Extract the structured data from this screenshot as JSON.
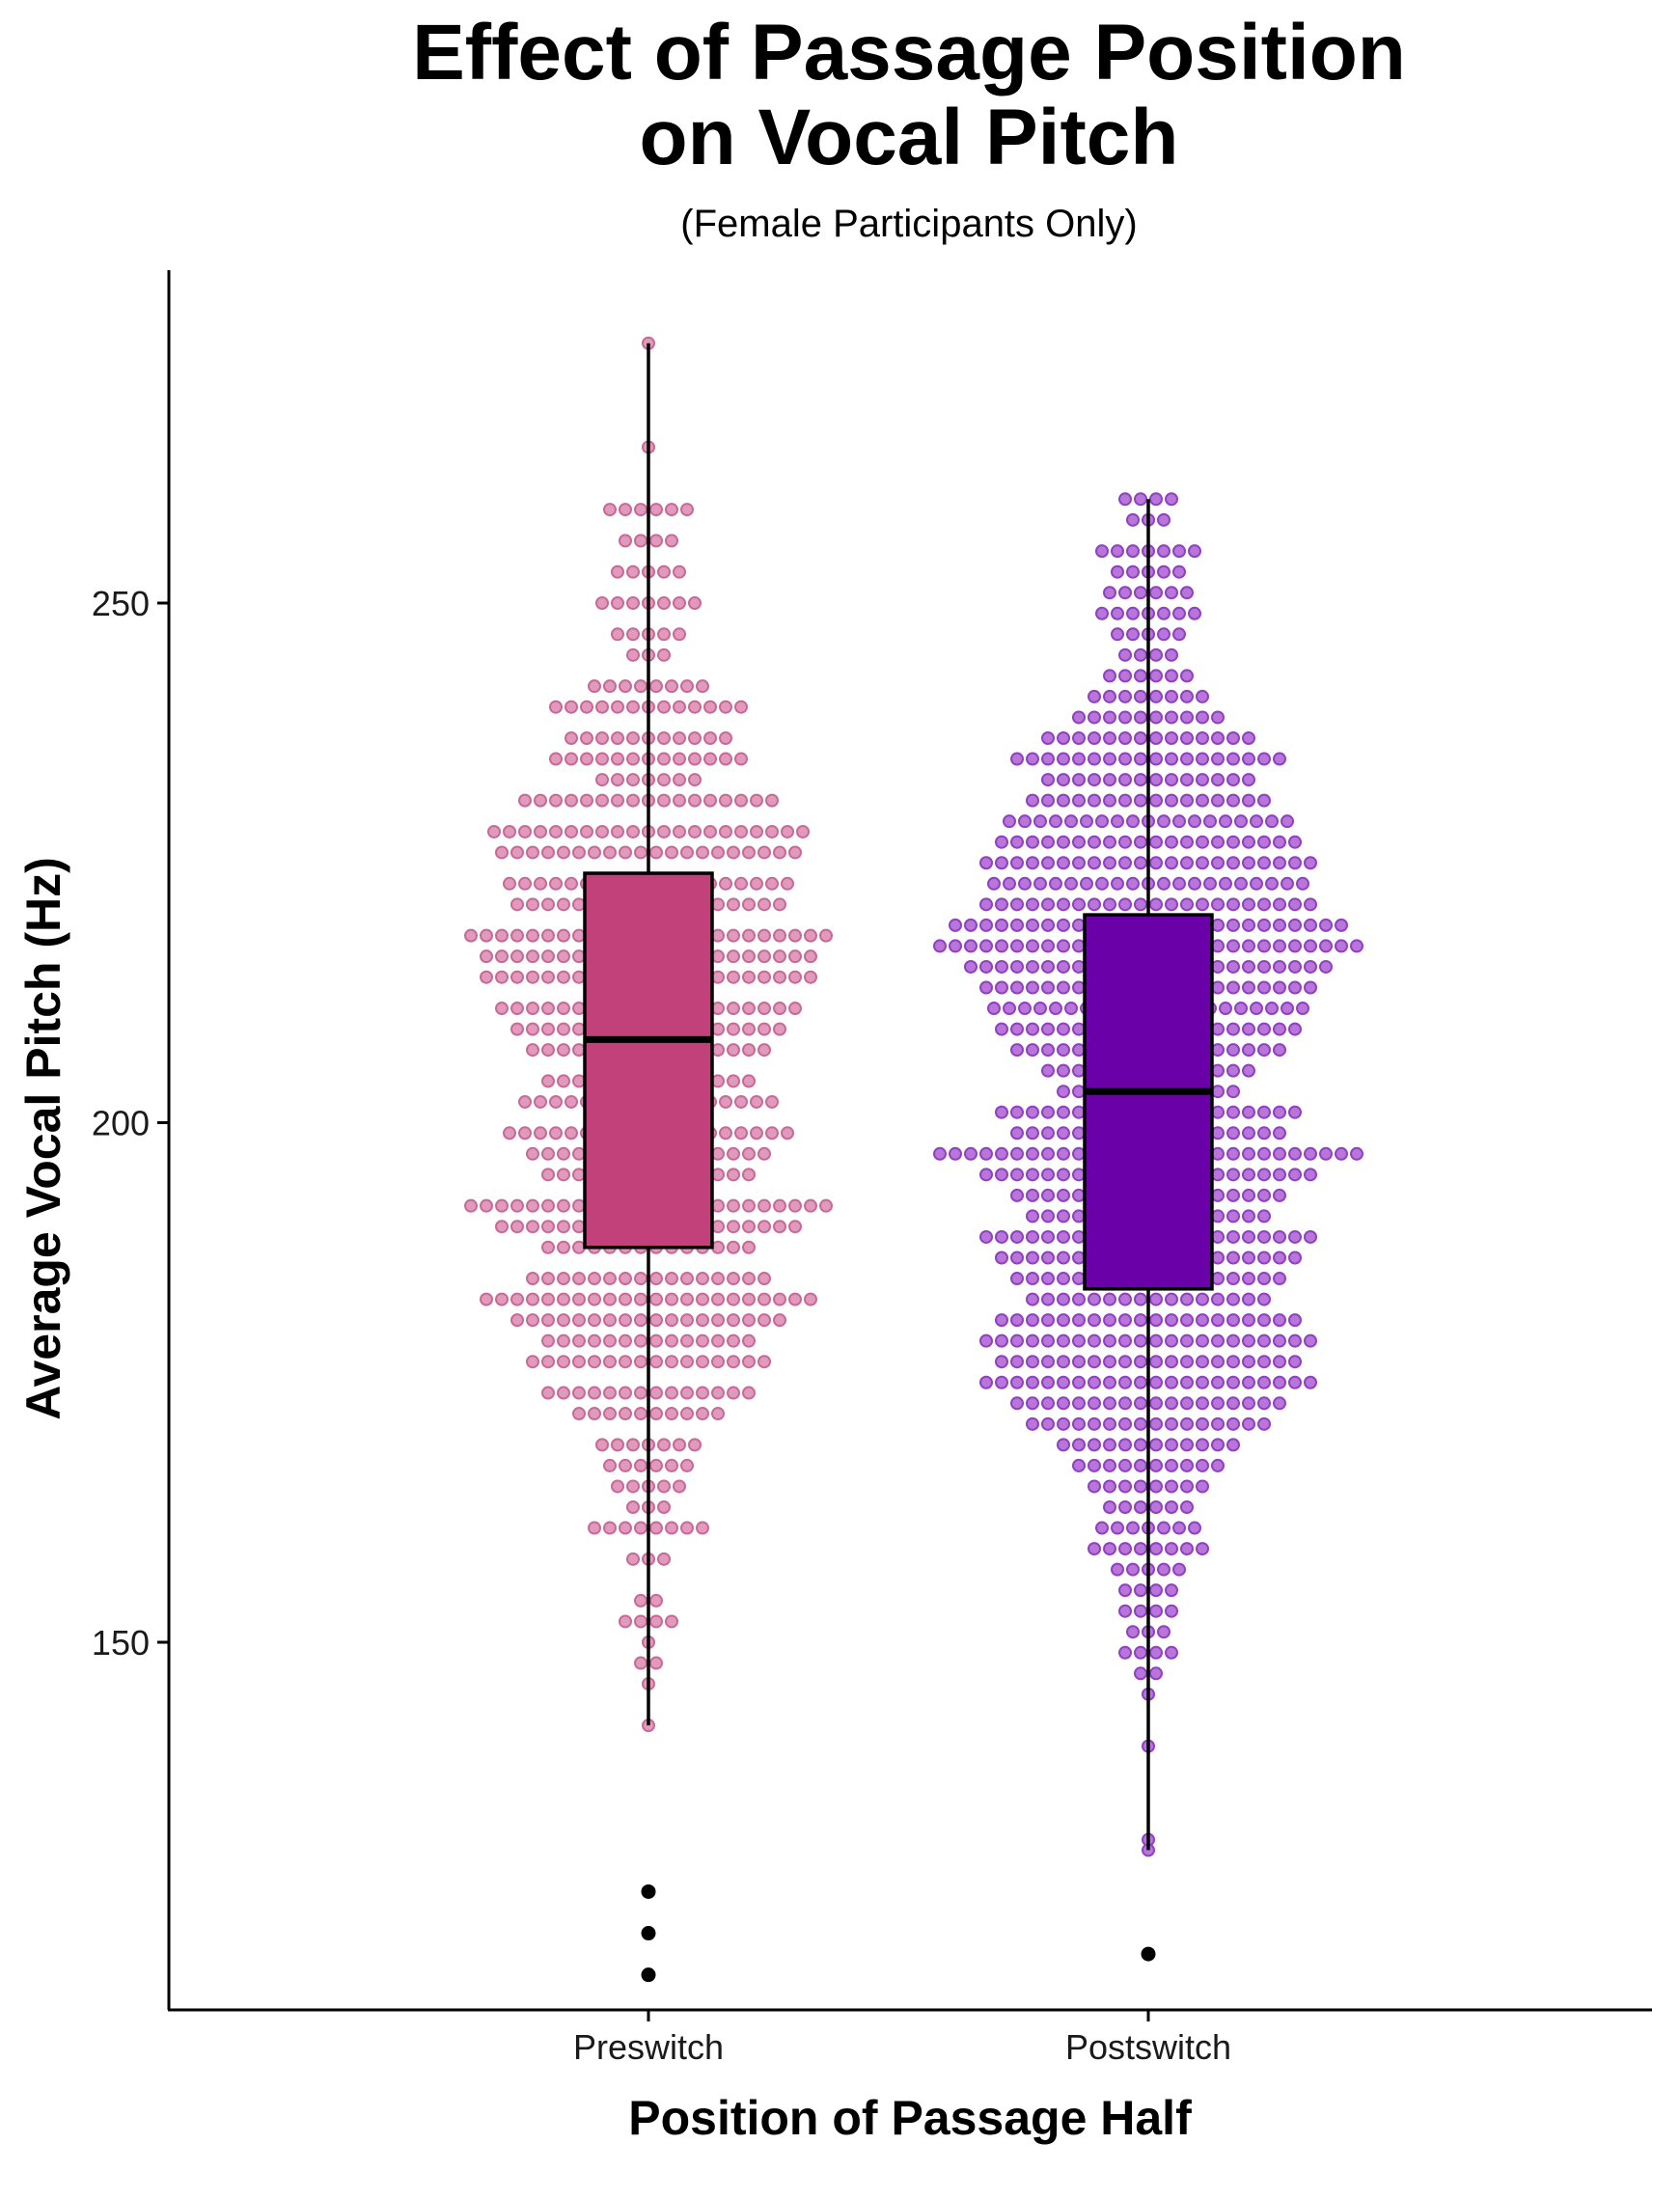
{
  "chart_data": {
    "type": "box-dotplot",
    "title_line1": "Effect of Passage Position",
    "title_line2": "on Vocal Pitch",
    "subtitle": "(Female Participants Only)",
    "xlabel": "Position of Passage Half",
    "ylabel": "Average Vocal Pitch (Hz)",
    "categories": [
      "Preswitch",
      "Postswitch"
    ],
    "ylim": [
      116,
      283
    ],
    "yticks": [
      150,
      200,
      250
    ],
    "ytick_labels": [
      "150",
      "200",
      "250"
    ],
    "grid": false,
    "legend": "none",
    "series": [
      {
        "category": "Preswitch",
        "box_color": "#C2417A",
        "dot_color": "#DE8FB4",
        "dot_edge": "#C76A98",
        "whisker_low": 142,
        "q1": 188,
        "median": 208,
        "q3": 224,
        "whisker_high": 275,
        "outliers": [
          126,
          122,
          118
        ],
        "dot_bins": [
          {
            "y": 275,
            "n": 1
          },
          {
            "y": 265,
            "n": 1
          },
          {
            "y": 259,
            "n": 6
          },
          {
            "y": 256,
            "n": 4
          },
          {
            "y": 253,
            "n": 5
          },
          {
            "y": 250,
            "n": 7
          },
          {
            "y": 247,
            "n": 5
          },
          {
            "y": 245,
            "n": 3
          },
          {
            "y": 242,
            "n": 8
          },
          {
            "y": 240,
            "n": 13
          },
          {
            "y": 237,
            "n": 11
          },
          {
            "y": 235,
            "n": 13
          },
          {
            "y": 233,
            "n": 7
          },
          {
            "y": 231,
            "n": 17
          },
          {
            "y": 228,
            "n": 21
          },
          {
            "y": 226,
            "n": 20
          },
          {
            "y": 223,
            "n": 19
          },
          {
            "y": 221,
            "n": 18
          },
          {
            "y": 218,
            "n": 24
          },
          {
            "y": 216,
            "n": 22
          },
          {
            "y": 214,
            "n": 22
          },
          {
            "y": 211,
            "n": 20
          },
          {
            "y": 209,
            "n": 18
          },
          {
            "y": 207,
            "n": 16
          },
          {
            "y": 204,
            "n": 14
          },
          {
            "y": 202,
            "n": 17
          },
          {
            "y": 199,
            "n": 19
          },
          {
            "y": 197,
            "n": 16
          },
          {
            "y": 195,
            "n": 14
          },
          {
            "y": 192,
            "n": 24
          },
          {
            "y": 190,
            "n": 20
          },
          {
            "y": 188,
            "n": 14
          },
          {
            "y": 185,
            "n": 16
          },
          {
            "y": 183,
            "n": 22
          },
          {
            "y": 181,
            "n": 18
          },
          {
            "y": 179,
            "n": 14
          },
          {
            "y": 177,
            "n": 16
          },
          {
            "y": 174,
            "n": 14
          },
          {
            "y": 172,
            "n": 10
          },
          {
            "y": 169,
            "n": 7
          },
          {
            "y": 167,
            "n": 6
          },
          {
            "y": 165,
            "n": 5
          },
          {
            "y": 163,
            "n": 3
          },
          {
            "y": 161,
            "n": 8
          },
          {
            "y": 158,
            "n": 3
          },
          {
            "y": 154,
            "n": 2
          },
          {
            "y": 152,
            "n": 4
          },
          {
            "y": 150,
            "n": 1
          },
          {
            "y": 148,
            "n": 2
          },
          {
            "y": 146,
            "n": 1
          },
          {
            "y": 142,
            "n": 1
          },
          {
            "y": 122,
            "n": 1
          }
        ]
      },
      {
        "category": "Postswitch",
        "box_color": "#6A00A8",
        "dot_color": "#B066D6",
        "dot_edge": "#9040C0",
        "whisker_low": 130,
        "q1": 184,
        "median": 203,
        "q3": 220,
        "whisker_high": 260,
        "outliers": [
          120
        ],
        "dot_bins": [
          {
            "y": 260,
            "n": 4
          },
          {
            "y": 258,
            "n": 3
          },
          {
            "y": 255,
            "n": 7
          },
          {
            "y": 253,
            "n": 5
          },
          {
            "y": 251,
            "n": 6
          },
          {
            "y": 249,
            "n": 7
          },
          {
            "y": 247,
            "n": 5
          },
          {
            "y": 245,
            "n": 4
          },
          {
            "y": 243,
            "n": 6
          },
          {
            "y": 241,
            "n": 8
          },
          {
            "y": 239,
            "n": 10
          },
          {
            "y": 237,
            "n": 14
          },
          {
            "y": 235,
            "n": 18
          },
          {
            "y": 233,
            "n": 14
          },
          {
            "y": 231,
            "n": 16
          },
          {
            "y": 229,
            "n": 19
          },
          {
            "y": 227,
            "n": 20
          },
          {
            "y": 225,
            "n": 22
          },
          {
            "y": 223,
            "n": 21
          },
          {
            "y": 221,
            "n": 22
          },
          {
            "y": 219,
            "n": 26
          },
          {
            "y": 217,
            "n": 28
          },
          {
            "y": 215,
            "n": 24
          },
          {
            "y": 213,
            "n": 22
          },
          {
            "y": 211,
            "n": 21
          },
          {
            "y": 209,
            "n": 20
          },
          {
            "y": 207,
            "n": 18
          },
          {
            "y": 205,
            "n": 14
          },
          {
            "y": 203,
            "n": 12
          },
          {
            "y": 201,
            "n": 20
          },
          {
            "y": 199,
            "n": 18
          },
          {
            "y": 197,
            "n": 28
          },
          {
            "y": 195,
            "n": 22
          },
          {
            "y": 193,
            "n": 18
          },
          {
            "y": 191,
            "n": 16
          },
          {
            "y": 189,
            "n": 22
          },
          {
            "y": 187,
            "n": 20
          },
          {
            "y": 185,
            "n": 18
          },
          {
            "y": 183,
            "n": 16
          },
          {
            "y": 181,
            "n": 20
          },
          {
            "y": 179,
            "n": 22
          },
          {
            "y": 177,
            "n": 20
          },
          {
            "y": 175,
            "n": 22
          },
          {
            "y": 173,
            "n": 18
          },
          {
            "y": 171,
            "n": 16
          },
          {
            "y": 169,
            "n": 12
          },
          {
            "y": 167,
            "n": 10
          },
          {
            "y": 165,
            "n": 8
          },
          {
            "y": 163,
            "n": 6
          },
          {
            "y": 161,
            "n": 7
          },
          {
            "y": 159,
            "n": 8
          },
          {
            "y": 157,
            "n": 5
          },
          {
            "y": 155,
            "n": 4
          },
          {
            "y": 153,
            "n": 4
          },
          {
            "y": 151,
            "n": 3
          },
          {
            "y": 149,
            "n": 4
          },
          {
            "y": 147,
            "n": 2
          },
          {
            "y": 145,
            "n": 1
          },
          {
            "y": 140,
            "n": 1
          },
          {
            "y": 131,
            "n": 1
          },
          {
            "y": 130,
            "n": 1
          }
        ]
      }
    ]
  }
}
